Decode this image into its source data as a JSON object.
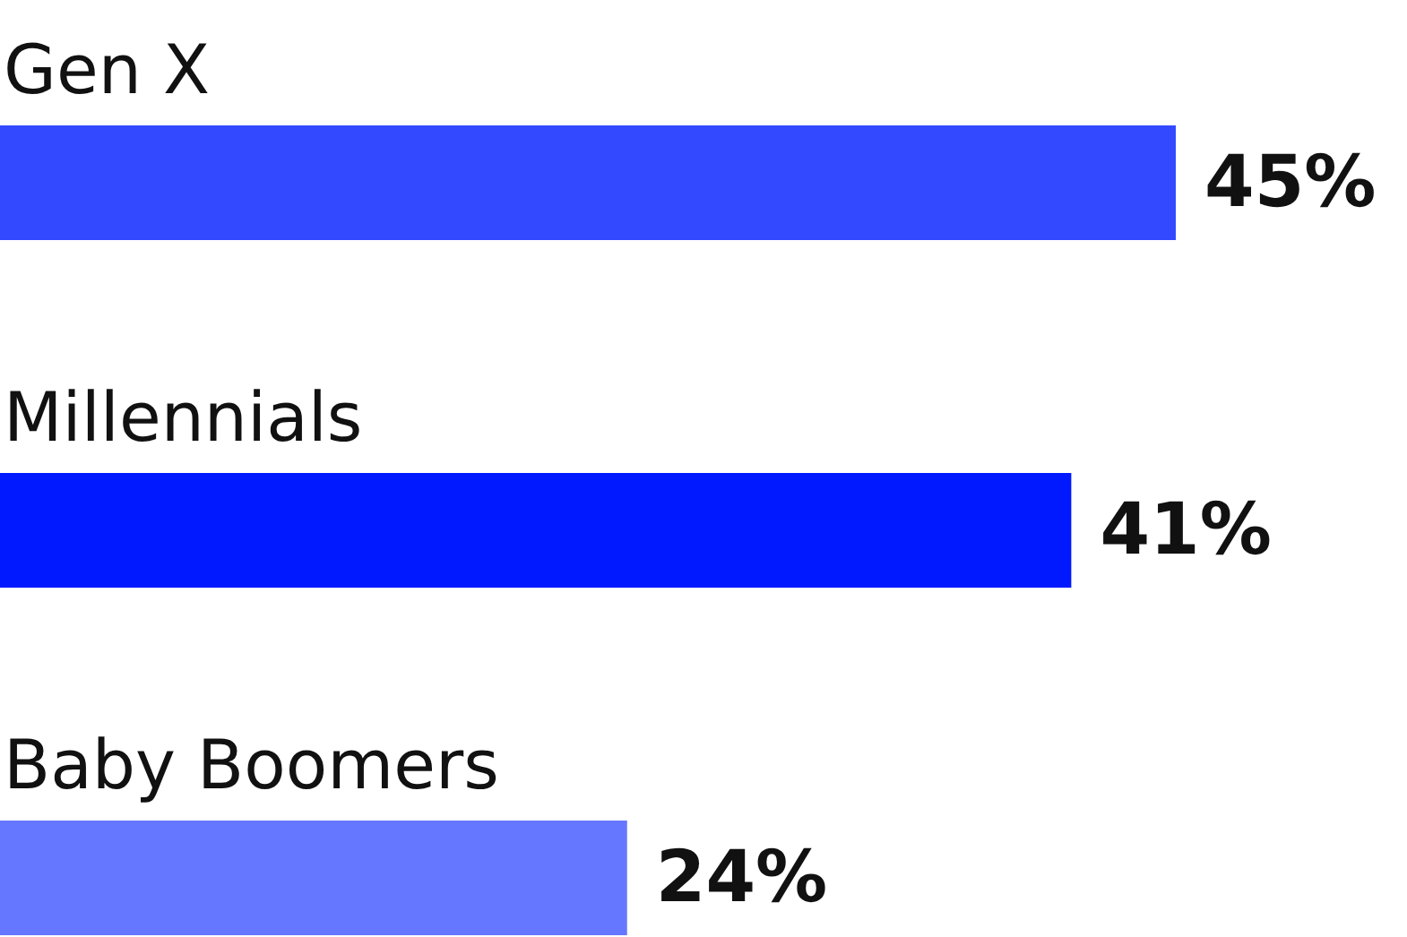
{
  "chart_data": {
    "type": "bar",
    "orientation": "horizontal",
    "categories": [
      "Gen X",
      "Millennials",
      "Baby Boomers"
    ],
    "values": [
      45,
      41,
      24
    ],
    "colors": [
      "#3349ff",
      "#0019ff",
      "#6677ff"
    ],
    "data_labels": true,
    "value_labels": [
      "45%",
      "41%",
      "24%"
    ]
  }
}
